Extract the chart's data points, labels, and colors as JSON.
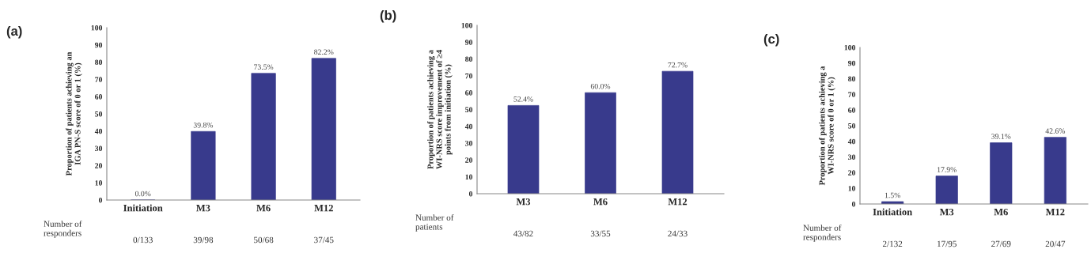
{
  "chart_data": [
    {
      "type": "bar",
      "title": "(a)",
      "ylabel": "Proportion of patients achieving an\nIGA PN-S score of 0 or 1 (%)",
      "categories": [
        "Initiation",
        "M3",
        "M6",
        "M12"
      ],
      "values": [
        0,
        39.8,
        73.5,
        82.2
      ],
      "color": "#383a8c",
      "value_labels": [
        "0.0%",
        "39.8%",
        "73.5%",
        "82.2%"
      ],
      "ylim": [
        0,
        100
      ],
      "yticks": [
        0,
        10,
        20,
        30,
        40,
        50,
        60,
        70,
        80,
        90,
        100
      ],
      "grid": false,
      "annotations": [
        "Number of\nresponders",
        "0/133",
        "39/98",
        "50/68",
        "37/45"
      ]
    },
    {
      "type": "bar",
      "title": "(b)",
      "ylabel": "Proportion of patients achieving a\nWI-NRS score improvement of ≥4\npoints from initiation (%)",
      "categories": [
        "M3",
        "M6",
        "M12"
      ],
      "values": [
        52.4,
        60.0,
        72.7
      ],
      "color": "#383a8c",
      "value_labels": [
        "52.4%",
        "60.0%",
        "72.7%"
      ],
      "ylim": [
        0,
        100
      ],
      "yticks": [
        0,
        10,
        20,
        30,
        40,
        50,
        60,
        70,
        80,
        90,
        100
      ],
      "grid": false,
      "annotations": [
        "Number of\npatients",
        "43/82",
        "33/55",
        "24/33"
      ]
    },
    {
      "type": "bar",
      "title": "(c)",
      "ylabel": "Proportion of patients achieving a\nWI-NRS score of 0 or 1 (%)",
      "categories": [
        "Initiation",
        "M3",
        "M6",
        "M12"
      ],
      "values": [
        1.5,
        17.9,
        39.1,
        42.6
      ],
      "color": "#383a8c",
      "value_labels": [
        "1.5%",
        "17.9%",
        "39.1%",
        "42.6%"
      ],
      "ylim": [
        0,
        100
      ],
      "yticks": [
        0,
        10,
        20,
        30,
        40,
        50,
        60,
        70,
        80,
        90,
        100
      ],
      "grid": false,
      "annotations": [
        "Number of\nresponders",
        "2/132",
        "17/95",
        "27/69",
        "20/47"
      ]
    }
  ]
}
